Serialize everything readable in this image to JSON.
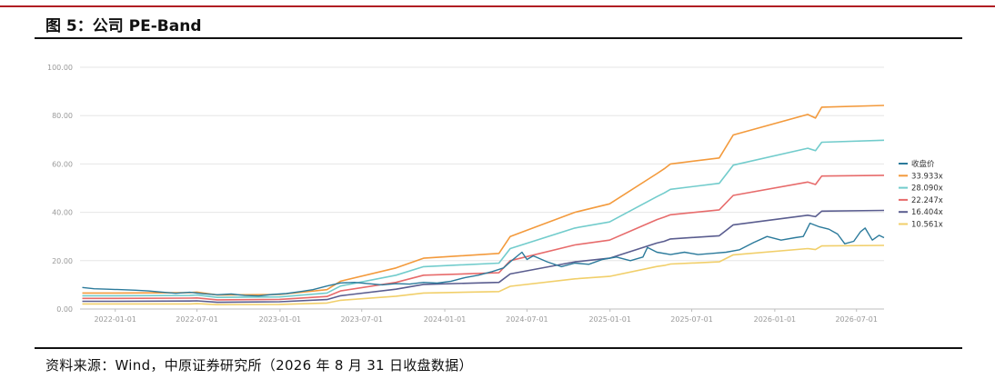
{
  "figure": {
    "title": "图 5：公司 PE-Band",
    "source": "资料来源：Wind，中原证券研究所（2026 年 8 月 31 日收盘数据）"
  },
  "colors": {
    "top_rule": "#b01e23",
    "price": "#2b7a9b",
    "band_33": "#f39a3c",
    "band_28": "#72cccc",
    "band_22": "#e76b6b",
    "band_16": "#5a5d8f",
    "band_10": "#f1cf6a",
    "grid": "#e6e6e6",
    "axis_text": "#999999"
  },
  "chart_data": {
    "type": "line",
    "title": "",
    "xlabel": "",
    "ylabel": "",
    "ylim": [
      0,
      100
    ],
    "yticks": [
      "0.00",
      "20.00",
      "40.00",
      "60.00",
      "80.00",
      "100.00"
    ],
    "xlim": [
      "2021-10-15",
      "2026-08-31"
    ],
    "xticks": [
      "2022-01-01",
      "2022-07-01",
      "2023-01-01",
      "2023-07-01",
      "2024-01-01",
      "2024-07-01",
      "2025-01-01",
      "2025-07-01",
      "2026-01-01",
      "2026-07-01"
    ],
    "grid": "horizontal",
    "legend_position": "right",
    "series": [
      {
        "name": "收盘价",
        "color": "#2b7a9b",
        "points": [
          [
            "2021-10-20",
            8.9
          ],
          [
            "2021-11-15",
            8.4
          ],
          [
            "2021-12-15",
            8.2
          ],
          [
            "2022-01-15",
            8.0
          ],
          [
            "2022-02-15",
            7.8
          ],
          [
            "2022-03-15",
            7.5
          ],
          [
            "2022-04-15",
            7.0
          ],
          [
            "2022-05-15",
            6.5
          ],
          [
            "2022-06-15",
            6.9
          ],
          [
            "2022-07-15",
            6.3
          ],
          [
            "2022-08-15",
            5.9
          ],
          [
            "2022-09-15",
            6.2
          ],
          [
            "2022-10-15",
            5.6
          ],
          [
            "2022-11-15",
            5.4
          ],
          [
            "2022-12-15",
            6.0
          ],
          [
            "2023-01-15",
            6.4
          ],
          [
            "2023-02-15",
            7.2
          ],
          [
            "2023-03-15",
            8.0
          ],
          [
            "2023-04-15",
            9.5
          ],
          [
            "2023-05-15",
            10.8
          ],
          [
            "2023-06-15",
            11.0
          ],
          [
            "2023-07-15",
            10.5
          ],
          [
            "2023-08-15",
            10.0
          ],
          [
            "2023-09-15",
            10.5
          ],
          [
            "2023-10-15",
            10.3
          ],
          [
            "2023-11-15",
            11.0
          ],
          [
            "2023-12-15",
            10.7
          ],
          [
            "2024-01-15",
            11.5
          ],
          [
            "2024-02-15",
            13.0
          ],
          [
            "2024-03-15",
            14.0
          ],
          [
            "2024-04-15",
            15.5
          ],
          [
            "2024-05-10",
            17.0
          ],
          [
            "2024-05-25",
            19.5
          ],
          [
            "2024-06-10",
            22.0
          ],
          [
            "2024-06-20",
            23.5
          ],
          [
            "2024-07-01",
            20.5
          ],
          [
            "2024-07-15",
            22.0
          ],
          [
            "2024-08-15",
            19.5
          ],
          [
            "2024-09-15",
            17.5
          ],
          [
            "2024-10-15",
            19.0
          ],
          [
            "2024-11-15",
            18.5
          ],
          [
            "2024-12-15",
            20.5
          ],
          [
            "2025-01-15",
            21.5
          ],
          [
            "2025-02-15",
            20.0
          ],
          [
            "2025-03-15",
            21.5
          ],
          [
            "2025-03-25",
            25.5
          ],
          [
            "2025-04-15",
            23.5
          ],
          [
            "2025-05-15",
            22.5
          ],
          [
            "2025-06-15",
            23.5
          ],
          [
            "2025-07-15",
            22.5
          ],
          [
            "2025-08-15",
            23.0
          ],
          [
            "2025-09-15",
            23.5
          ],
          [
            "2025-10-15",
            24.5
          ],
          [
            "2025-11-15",
            27.5
          ],
          [
            "2025-12-15",
            30.0
          ],
          [
            "2026-01-15",
            28.5
          ],
          [
            "2026-02-15",
            29.5
          ],
          [
            "2026-03-05",
            30.0
          ],
          [
            "2026-03-20",
            35.5
          ],
          [
            "2026-04-10",
            34.0
          ],
          [
            "2026-05-01",
            33.0
          ],
          [
            "2026-05-20",
            31.0
          ],
          [
            "2026-06-05",
            27.0
          ],
          [
            "2026-06-25",
            28.0
          ],
          [
            "2026-07-10",
            32.0
          ],
          [
            "2026-07-20",
            33.5
          ],
          [
            "2026-08-05",
            28.5
          ],
          [
            "2026-08-20",
            30.5
          ],
          [
            "2026-08-31",
            29.5
          ]
        ]
      },
      {
        "name": "33.933x",
        "color": "#f39a3c",
        "points": [
          [
            "2021-10-20",
            6.6
          ],
          [
            "2022-01-01",
            6.6
          ],
          [
            "2022-06-15",
            6.8
          ],
          [
            "2022-07-01",
            7.0
          ],
          [
            "2022-08-15",
            5.8
          ],
          [
            "2022-12-31",
            6.0
          ],
          [
            "2023-04-15",
            8.0
          ],
          [
            "2023-05-15",
            11.5
          ],
          [
            "2023-09-15",
            17.0
          ],
          [
            "2023-11-15",
            21.0
          ],
          [
            "2024-04-30",
            23.0
          ],
          [
            "2024-05-25",
            30.0
          ],
          [
            "2024-10-15",
            40.0
          ],
          [
            "2024-12-31",
            43.5
          ],
          [
            "2025-04-15",
            56.0
          ],
          [
            "2025-05-01",
            58.0
          ],
          [
            "2025-05-15",
            60.0
          ],
          [
            "2025-08-31",
            62.5
          ],
          [
            "2025-10-01",
            72.0
          ],
          [
            "2026-03-15",
            80.5
          ],
          [
            "2026-04-01",
            79.0
          ],
          [
            "2026-04-15",
            83.5
          ],
          [
            "2026-08-31",
            84.2
          ]
        ]
      },
      {
        "name": "28.090x",
        "color": "#72cccc",
        "points": [
          [
            "2021-10-20",
            5.5
          ],
          [
            "2022-01-01",
            5.5
          ],
          [
            "2022-06-15",
            5.6
          ],
          [
            "2022-07-01",
            5.8
          ],
          [
            "2022-08-15",
            4.8
          ],
          [
            "2022-12-31",
            5.0
          ],
          [
            "2023-04-15",
            6.6
          ],
          [
            "2023-05-15",
            9.5
          ],
          [
            "2023-09-15",
            14.0
          ],
          [
            "2023-11-15",
            17.5
          ],
          [
            "2024-04-30",
            19.0
          ],
          [
            "2024-05-25",
            25.0
          ],
          [
            "2024-10-15",
            33.5
          ],
          [
            "2024-12-31",
            36.0
          ],
          [
            "2025-04-15",
            46.5
          ],
          [
            "2025-05-01",
            48.0
          ],
          [
            "2025-05-15",
            49.5
          ],
          [
            "2025-08-31",
            52.0
          ],
          [
            "2025-10-01",
            59.5
          ],
          [
            "2026-03-15",
            66.5
          ],
          [
            "2026-04-01",
            65.5
          ],
          [
            "2026-04-15",
            69.0
          ],
          [
            "2026-08-31",
            69.8
          ]
        ]
      },
      {
        "name": "22.247x",
        "color": "#e76b6b",
        "points": [
          [
            "2021-10-20",
            4.4
          ],
          [
            "2022-01-01",
            4.4
          ],
          [
            "2022-06-15",
            4.5
          ],
          [
            "2022-07-01",
            4.6
          ],
          [
            "2022-08-15",
            3.8
          ],
          [
            "2022-12-31",
            4.0
          ],
          [
            "2023-04-15",
            5.2
          ],
          [
            "2023-05-15",
            7.5
          ],
          [
            "2023-09-15",
            11.0
          ],
          [
            "2023-11-15",
            14.0
          ],
          [
            "2024-04-30",
            15.0
          ],
          [
            "2024-05-25",
            20.0
          ],
          [
            "2024-10-15",
            26.5
          ],
          [
            "2024-12-31",
            28.5
          ],
          [
            "2025-04-15",
            37.0
          ],
          [
            "2025-05-01",
            38.0
          ],
          [
            "2025-05-15",
            39.0
          ],
          [
            "2025-08-31",
            41.0
          ],
          [
            "2025-10-01",
            47.0
          ],
          [
            "2026-03-15",
            52.5
          ],
          [
            "2026-04-01",
            51.5
          ],
          [
            "2026-04-15",
            55.0
          ],
          [
            "2026-08-31",
            55.3
          ]
        ]
      },
      {
        "name": "16.404x",
        "color": "#5a5d8f",
        "points": [
          [
            "2021-10-20",
            3.2
          ],
          [
            "2022-01-01",
            3.2
          ],
          [
            "2022-06-15",
            3.3
          ],
          [
            "2022-07-01",
            3.4
          ],
          [
            "2022-08-15",
            2.8
          ],
          [
            "2022-12-31",
            3.0
          ],
          [
            "2023-04-15",
            3.9
          ],
          [
            "2023-05-15",
            5.5
          ],
          [
            "2023-09-15",
            8.2
          ],
          [
            "2023-11-15",
            10.2
          ],
          [
            "2024-04-30",
            11.0
          ],
          [
            "2024-05-25",
            14.5
          ],
          [
            "2024-10-15",
            19.5
          ],
          [
            "2024-12-31",
            21.0
          ],
          [
            "2025-04-15",
            27.3
          ],
          [
            "2025-05-01",
            28.0
          ],
          [
            "2025-05-15",
            29.0
          ],
          [
            "2025-08-31",
            30.3
          ],
          [
            "2025-10-01",
            34.8
          ],
          [
            "2026-03-15",
            38.8
          ],
          [
            "2026-04-01",
            38.2
          ],
          [
            "2026-04-15",
            40.5
          ],
          [
            "2026-08-31",
            40.8
          ]
        ]
      },
      {
        "name": "10.561x",
        "color": "#f1cf6a",
        "points": [
          [
            "2021-10-20",
            2.1
          ],
          [
            "2022-01-01",
            2.1
          ],
          [
            "2022-06-15",
            2.1
          ],
          [
            "2022-07-01",
            2.2
          ],
          [
            "2022-08-15",
            1.8
          ],
          [
            "2022-12-31",
            1.9
          ],
          [
            "2023-04-15",
            2.5
          ],
          [
            "2023-05-15",
            3.6
          ],
          [
            "2023-09-15",
            5.3
          ],
          [
            "2023-11-15",
            6.6
          ],
          [
            "2024-04-30",
            7.2
          ],
          [
            "2024-05-25",
            9.4
          ],
          [
            "2024-10-15",
            12.5
          ],
          [
            "2024-12-31",
            13.5
          ],
          [
            "2025-04-15",
            17.6
          ],
          [
            "2025-05-01",
            18.0
          ],
          [
            "2025-05-15",
            18.6
          ],
          [
            "2025-08-31",
            19.5
          ],
          [
            "2025-10-01",
            22.4
          ],
          [
            "2026-03-15",
            25.0
          ],
          [
            "2026-04-01",
            24.6
          ],
          [
            "2026-04-15",
            26.1
          ],
          [
            "2026-08-31",
            26.3
          ]
        ]
      }
    ]
  }
}
